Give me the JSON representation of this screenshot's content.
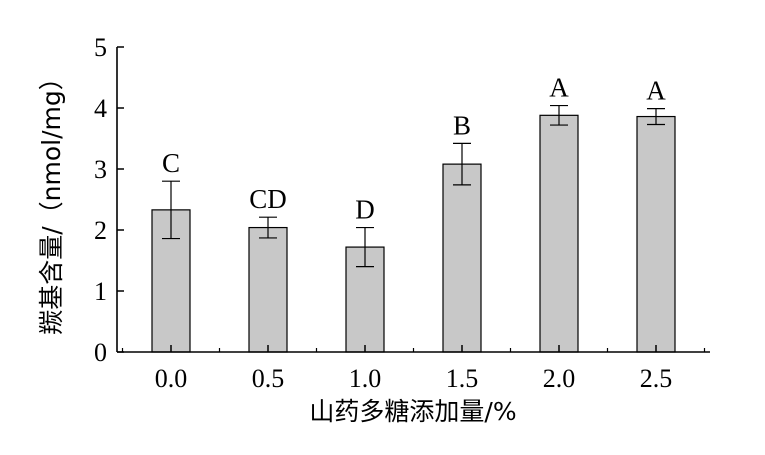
{
  "chart_data": {
    "type": "bar",
    "categories": [
      "0.0",
      "0.5",
      "1.0",
      "1.5",
      "2.0",
      "2.5"
    ],
    "values": [
      2.33,
      2.04,
      1.72,
      3.08,
      3.88,
      3.86
    ],
    "errors": [
      0.47,
      0.17,
      0.32,
      0.34,
      0.16,
      0.13
    ],
    "significance_letters": [
      "C",
      "CD",
      "D",
      "B",
      "A",
      "A"
    ],
    "xlabel": "山药多糖添加量/%",
    "ylabel": "羰基含量/（nmol/mg）",
    "ylim": [
      0,
      5
    ],
    "yticks": [
      "0",
      "1",
      "2",
      "3",
      "4",
      "5"
    ],
    "grid": false,
    "colors": {
      "bar_fill": "#c8c8c8",
      "bar_stroke": "#000000",
      "axis": "#000000"
    }
  }
}
